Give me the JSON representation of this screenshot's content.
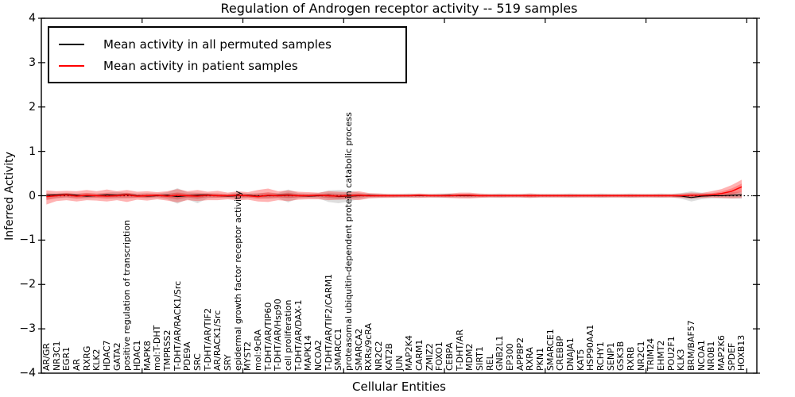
{
  "chart_data": {
    "type": "line",
    "title": "Regulation of Androgen receptor activity -- 519 samples",
    "xlabel": "Cellular Entities",
    "ylabel": "Inferred Activity",
    "ylim": [
      -4,
      4
    ],
    "yticks": [
      4,
      3,
      2,
      1,
      0,
      -1,
      -2,
      -3,
      -4
    ],
    "xticks_every": 10,
    "grid": false,
    "legend_position": "upper left",
    "zero_line": true,
    "categories": [
      "AR/GR",
      "NR3C1",
      "EGR1",
      "AR",
      "RXRG",
      "KLK2",
      "HDAC7",
      "GATA2",
      "positive regulation of transcription",
      "HDAC1",
      "MAPK8",
      "mol:T-DHT",
      "TMPRSS2",
      "T-DHT/AR/RACK1/Src",
      "PDE9A",
      "SRC",
      "T-DHT/AR/TIF2",
      "AR/RACK1/Src",
      "SRY",
      "epidermal growth factor receptor activity",
      "MYST2",
      "mol:9cRA",
      "T-DHT/AR/TIP60",
      "T-DHT/AR/Hsp90",
      "cell proliferation",
      "T-DHT/AR/DAX-1",
      "MAPK14",
      "NCOA2",
      "T-DHT/AR/TIF2/CARM1",
      "SMARCC1",
      "proteasomal ubiquitin-dependent protein catabolic process",
      "SMARCA2",
      "RXRs/9cRA",
      "NR2C2",
      "KAT2B",
      "JUN",
      "MAP2K4",
      "CARM1",
      "ZMIZ2",
      "FOXO1",
      "CEBPA",
      "T-DHT/AR",
      "MDM2",
      "SIRT1",
      "REL",
      "GNB2L1",
      "EP300",
      "APPBP2",
      "RXRA",
      "PKN1",
      "SMARCE1",
      "CREBBP",
      "DNAJA1",
      "KAT5",
      "HSP90AA1",
      "RCHY1",
      "SENP1",
      "GSK3B",
      "RXRB",
      "NR2C1",
      "TRIM24",
      "EHMT2",
      "POU2F1",
      "KLK3",
      "BRM/BAF57",
      "NCOA1",
      "NR0B1",
      "MAP2K6",
      "SPDEF",
      "HOXB13"
    ],
    "series": [
      {
        "name": "Mean activity in all permuted samples",
        "color": "#000000",
        "values": [
          0.01,
          0.02,
          0.03,
          0.01,
          -0.01,
          0,
          0.02,
          0.01,
          0.03,
          0,
          -0.01,
          0,
          0.01,
          -0.02,
          0,
          0.01,
          0.02,
          0,
          -0.01,
          0,
          0.01,
          -0.01,
          0,
          0.01,
          0.02,
          0,
          -0.01,
          0,
          0.01,
          -0.02,
          -0.01,
          0,
          0.01,
          0,
          0,
          0,
          0,
          0,
          0,
          0,
          0.01,
          0,
          0,
          0,
          0,
          0,
          0,
          0,
          0,
          0,
          0,
          0,
          0,
          0,
          0,
          0,
          0,
          0,
          0,
          0,
          0,
          0,
          0,
          -0.01,
          -0.04,
          -0.01,
          0,
          0,
          0.01,
          0.02
        ]
      },
      {
        "name": "Mean activity in patient samples",
        "color": "#ff0000",
        "values": [
          -0.02,
          0,
          0.02,
          -0.01,
          0.01,
          0,
          -0.01,
          0,
          0.02,
          -0.01,
          0,
          0.01,
          -0.01,
          0.01,
          0,
          -0.01,
          0.01,
          0,
          0,
          0.01,
          0,
          -0.02,
          0.01,
          0,
          0.01,
          0,
          0,
          0.01,
          0,
          -0.01,
          0,
          0.01,
          0,
          0,
          0,
          0,
          0,
          0.01,
          0,
          0,
          0,
          0.01,
          0.01,
          0,
          0,
          0,
          0,
          0,
          0,
          0,
          0,
          0,
          0,
          0,
          0,
          0,
          0,
          0,
          0,
          0,
          0,
          0,
          0,
          0,
          0.01,
          0.01,
          0.02,
          0.05,
          0.1,
          0.2
        ]
      }
    ],
    "bands": [
      {
        "name": "permuted samples spread",
        "color": "#000000",
        "opacity": 0.13,
        "upper": [
          0.06,
          0.05,
          0.06,
          0.05,
          0.06,
          0.05,
          0.07,
          0.09,
          0.06,
          0.05,
          0.06,
          0.05,
          0.08,
          0.17,
          0.08,
          0.07,
          0.06,
          0.05,
          0.04,
          0.08,
          0.05,
          0.06,
          0.07,
          0.06,
          0.14,
          0.06,
          0.05,
          0.06,
          0.12,
          0.13,
          0.12,
          0.07,
          0.05,
          0.05,
          0.04,
          0.04,
          0.05,
          0.04,
          0.04,
          0.05,
          0.05,
          0.04,
          0.05,
          0.04,
          0.04,
          0.05,
          0.04,
          0.04,
          0.05,
          0.04,
          0.04,
          0.04,
          0.05,
          0.04,
          0.04,
          0.05,
          0.04,
          0.04,
          0.05,
          0.04,
          0.04,
          0.05,
          0.04,
          0.06,
          0.1,
          0.07,
          0.05,
          0.06,
          0.08,
          0.09
        ],
        "lower": [
          -0.08,
          -0.06,
          -0.05,
          -0.06,
          -0.07,
          -0.05,
          -0.06,
          -0.07,
          -0.06,
          -0.05,
          -0.06,
          -0.05,
          -0.08,
          -0.18,
          -0.08,
          -0.17,
          -0.06,
          -0.05,
          -0.05,
          -0.07,
          -0.05,
          -0.06,
          -0.07,
          -0.06,
          -0.15,
          -0.06,
          -0.05,
          -0.06,
          -0.14,
          -0.17,
          -0.13,
          -0.08,
          -0.05,
          -0.05,
          -0.04,
          -0.05,
          -0.05,
          -0.04,
          -0.04,
          -0.05,
          -0.05,
          -0.04,
          -0.05,
          -0.04,
          -0.04,
          -0.05,
          -0.04,
          -0.04,
          -0.05,
          -0.04,
          -0.04,
          -0.04,
          -0.05,
          -0.04,
          -0.04,
          -0.05,
          -0.04,
          -0.04,
          -0.05,
          -0.04,
          -0.04,
          -0.05,
          -0.04,
          -0.07,
          -0.13,
          -0.08,
          -0.06,
          -0.06,
          -0.06,
          -0.07
        ]
      },
      {
        "name": "patient samples spread",
        "color": "#ff0000",
        "opacity": 0.3,
        "upper": [
          0.12,
          0.1,
          0.11,
          0.1,
          0.13,
          0.1,
          0.14,
          0.1,
          0.13,
          0.09,
          0.1,
          0.08,
          0.1,
          0.15,
          0.1,
          0.13,
          0.09,
          0.11,
          0.07,
          0.1,
          0.08,
          0.13,
          0.16,
          0.1,
          0.12,
          0.09,
          0.08,
          0.07,
          0.1,
          0.09,
          0.08,
          0.1,
          0.06,
          0.05,
          0.04,
          0.04,
          0.04,
          0.05,
          0.04,
          0.04,
          0.05,
          0.07,
          0.07,
          0.05,
          0.04,
          0.04,
          0.04,
          0.04,
          0.05,
          0.04,
          0.04,
          0.04,
          0.04,
          0.04,
          0.04,
          0.04,
          0.04,
          0.04,
          0.04,
          0.04,
          0.04,
          0.04,
          0.04,
          0.05,
          0.07,
          0.06,
          0.1,
          0.15,
          0.24,
          0.36
        ],
        "lower": [
          -0.2,
          -0.12,
          -0.1,
          -0.13,
          -0.1,
          -0.11,
          -0.13,
          -0.1,
          -0.14,
          -0.09,
          -0.11,
          -0.08,
          -0.11,
          -0.15,
          -0.1,
          -0.12,
          -0.1,
          -0.1,
          -0.08,
          -0.1,
          -0.09,
          -0.13,
          -0.14,
          -0.1,
          -0.12,
          -0.09,
          -0.08,
          -0.08,
          -0.1,
          -0.09,
          -0.08,
          -0.1,
          -0.06,
          -0.05,
          -0.05,
          -0.04,
          -0.04,
          -0.05,
          -0.04,
          -0.04,
          -0.05,
          -0.06,
          -0.06,
          -0.05,
          -0.04,
          -0.04,
          -0.04,
          -0.04,
          -0.05,
          -0.04,
          -0.04,
          -0.04,
          -0.04,
          -0.04,
          -0.04,
          -0.04,
          -0.04,
          -0.04,
          -0.04,
          -0.04,
          -0.04,
          -0.04,
          -0.04,
          -0.05,
          -0.06,
          -0.05,
          -0.04,
          -0.05,
          -0.06,
          -0.05
        ]
      }
    ]
  },
  "legend": {
    "items": [
      {
        "label": "Mean activity in all permuted samples",
        "color": "#000000"
      },
      {
        "label": "Mean activity in patient samples",
        "color": "#ff0000"
      }
    ]
  }
}
